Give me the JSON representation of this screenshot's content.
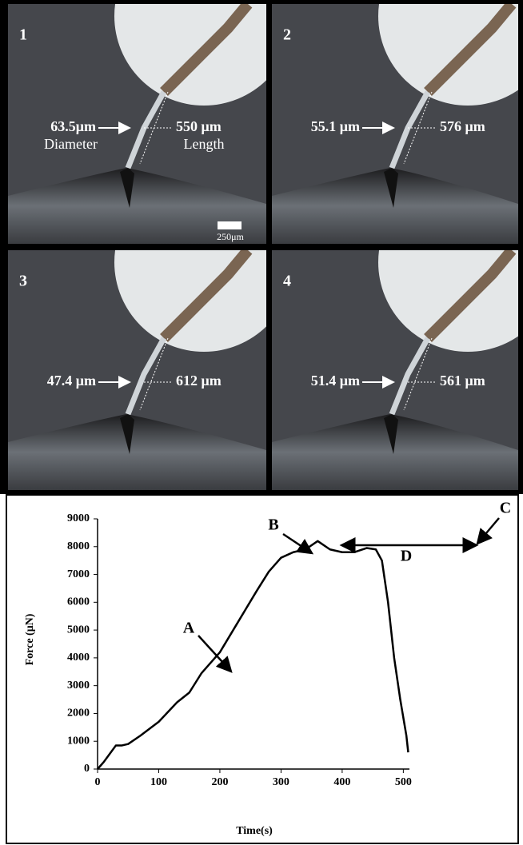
{
  "panels": [
    {
      "label": "1",
      "diameter": "63.5μm",
      "diameter_caption": "Diameter",
      "length": "550 μm",
      "length_caption": "Length",
      "scale_bar": "250μm"
    },
    {
      "label": "2",
      "diameter": "55.1 μm",
      "length": "576 μm"
    },
    {
      "label": "3",
      "diameter": "47.4 μm",
      "length": "612 μm"
    },
    {
      "label": "4",
      "diameter": "51.4 μm",
      "length": "561 μm"
    }
  ],
  "chart_data": {
    "type": "line",
    "x_label": "Time(s)",
    "y_label": "Force (μN)",
    "x": [
      0,
      10,
      20,
      30,
      40,
      50,
      70,
      100,
      130,
      150,
      170,
      200,
      230,
      260,
      280,
      300,
      320,
      340,
      360,
      380,
      400,
      420,
      440,
      455,
      465,
      475,
      485,
      495,
      505,
      508
    ],
    "series": [
      {
        "color": "#000000",
        "values": [
          0,
          250,
          550,
          850,
          850,
          900,
          1200,
          1700,
          2400,
          2750,
          3450,
          4200,
          5300,
          6400,
          7100,
          7600,
          7800,
          7900,
          8200,
          7900,
          7800,
          7800,
          7950,
          7900,
          7500,
          6000,
          4000,
          2500,
          1200,
          600
        ]
      }
    ],
    "xlim": [
      0,
      510
    ],
    "ylim": [
      0,
      9000
    ],
    "xticks": [
      0,
      100,
      200,
      300,
      400,
      500
    ],
    "yticks": [
      0,
      1000,
      2000,
      3000,
      4000,
      5000,
      6000,
      7000,
      8000,
      9000
    ],
    "annotations": [
      "A",
      "B",
      "C",
      "D"
    ]
  }
}
